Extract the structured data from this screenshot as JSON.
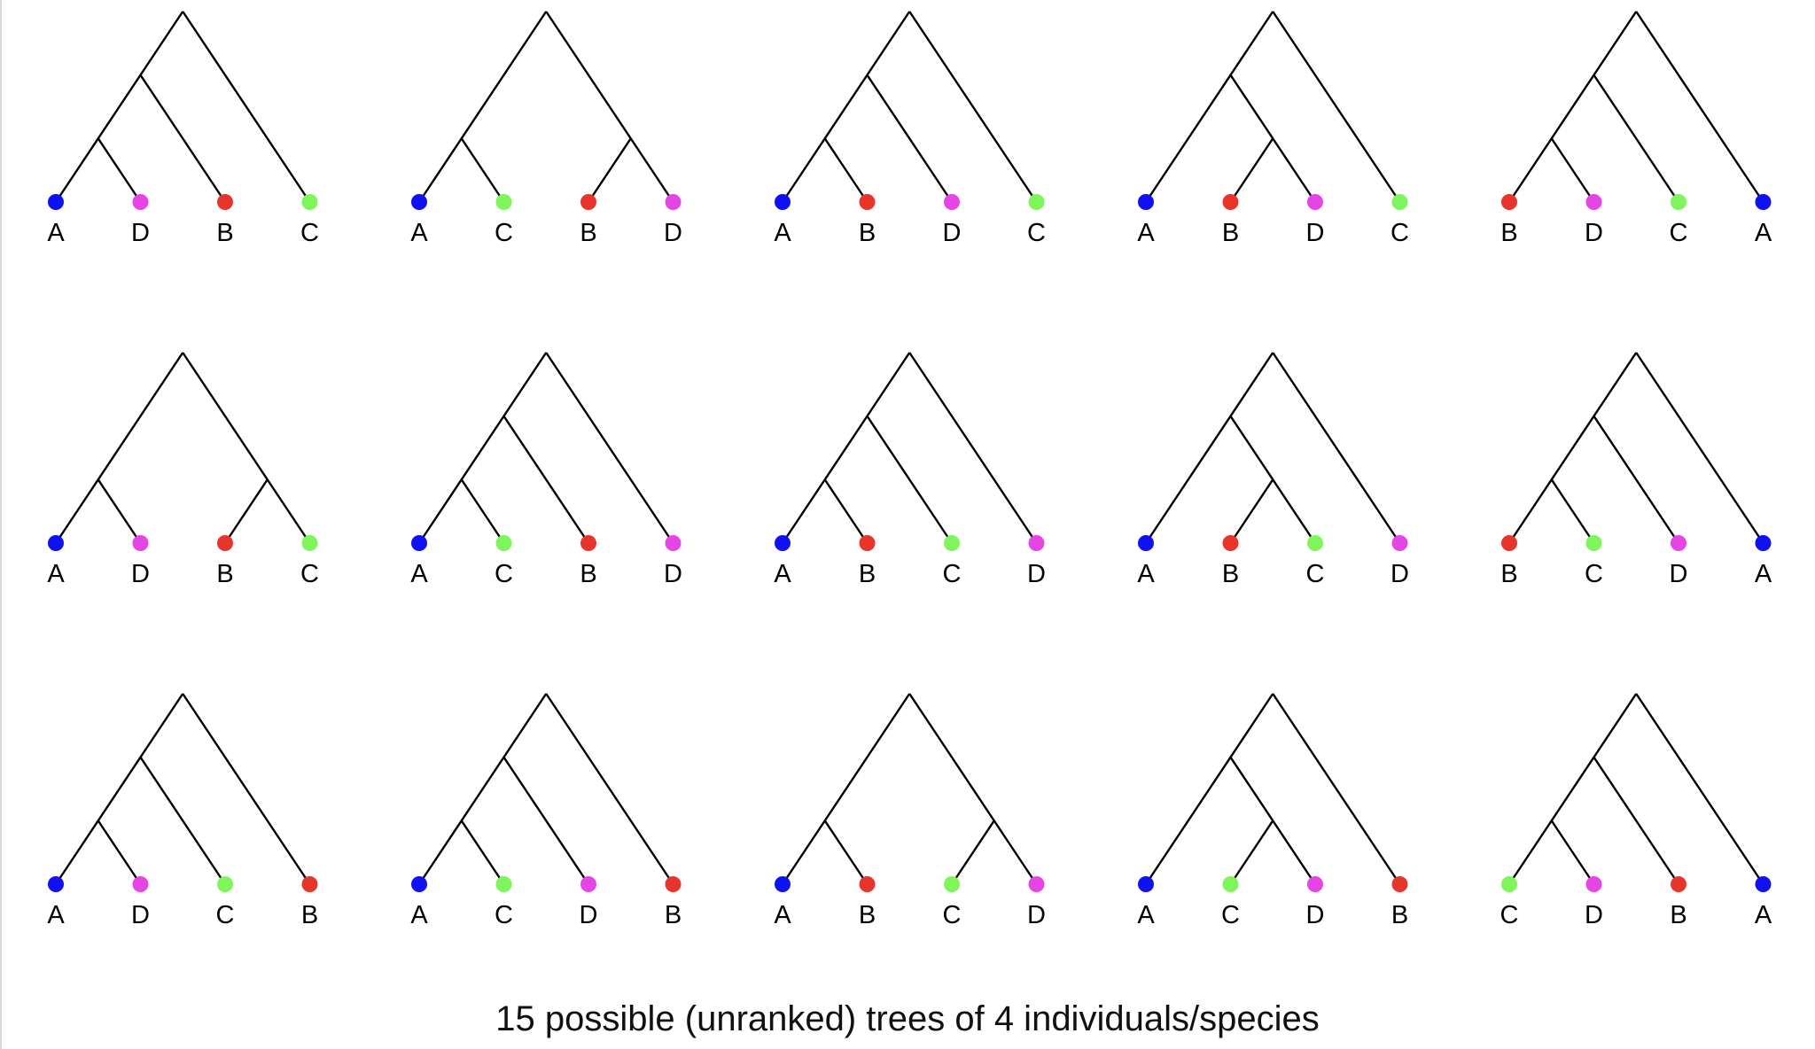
{
  "caption": "15 possible (unranked) trees of 4 individuals/species",
  "colors": {
    "A": "#1010f5",
    "B": "#e8352b",
    "C": "#7ef55a",
    "D": "#e645e6",
    "line": "#000000"
  },
  "trees": [
    {
      "leaves": [
        "A",
        "D",
        "B",
        "C"
      ],
      "topology": "caterpillar"
    },
    {
      "leaves": [
        "A",
        "C",
        "B",
        "D"
      ],
      "topology": "balanced"
    },
    {
      "leaves": [
        "A",
        "B",
        "D",
        "C"
      ],
      "topology": "caterpillar"
    },
    {
      "leaves": [
        "A",
        "B",
        "D",
        "C"
      ],
      "topology": "inner-cherry"
    },
    {
      "leaves": [
        "B",
        "D",
        "C",
        "A"
      ],
      "topology": "caterpillar"
    },
    {
      "leaves": [
        "A",
        "D",
        "B",
        "C"
      ],
      "topology": "balanced"
    },
    {
      "leaves": [
        "A",
        "C",
        "B",
        "D"
      ],
      "topology": "caterpillar"
    },
    {
      "leaves": [
        "A",
        "B",
        "C",
        "D"
      ],
      "topology": "caterpillar"
    },
    {
      "leaves": [
        "A",
        "B",
        "C",
        "D"
      ],
      "topology": "inner-cherry"
    },
    {
      "leaves": [
        "B",
        "C",
        "D",
        "A"
      ],
      "topology": "caterpillar"
    },
    {
      "leaves": [
        "A",
        "D",
        "C",
        "B"
      ],
      "topology": "caterpillar"
    },
    {
      "leaves": [
        "A",
        "C",
        "D",
        "B"
      ],
      "topology": "caterpillar"
    },
    {
      "leaves": [
        "A",
        "B",
        "C",
        "D"
      ],
      "topology": "balanced"
    },
    {
      "leaves": [
        "A",
        "C",
        "D",
        "B"
      ],
      "topology": "inner-cherry"
    },
    {
      "leaves": [
        "C",
        "D",
        "B",
        "A"
      ],
      "topology": "caterpillar"
    }
  ]
}
